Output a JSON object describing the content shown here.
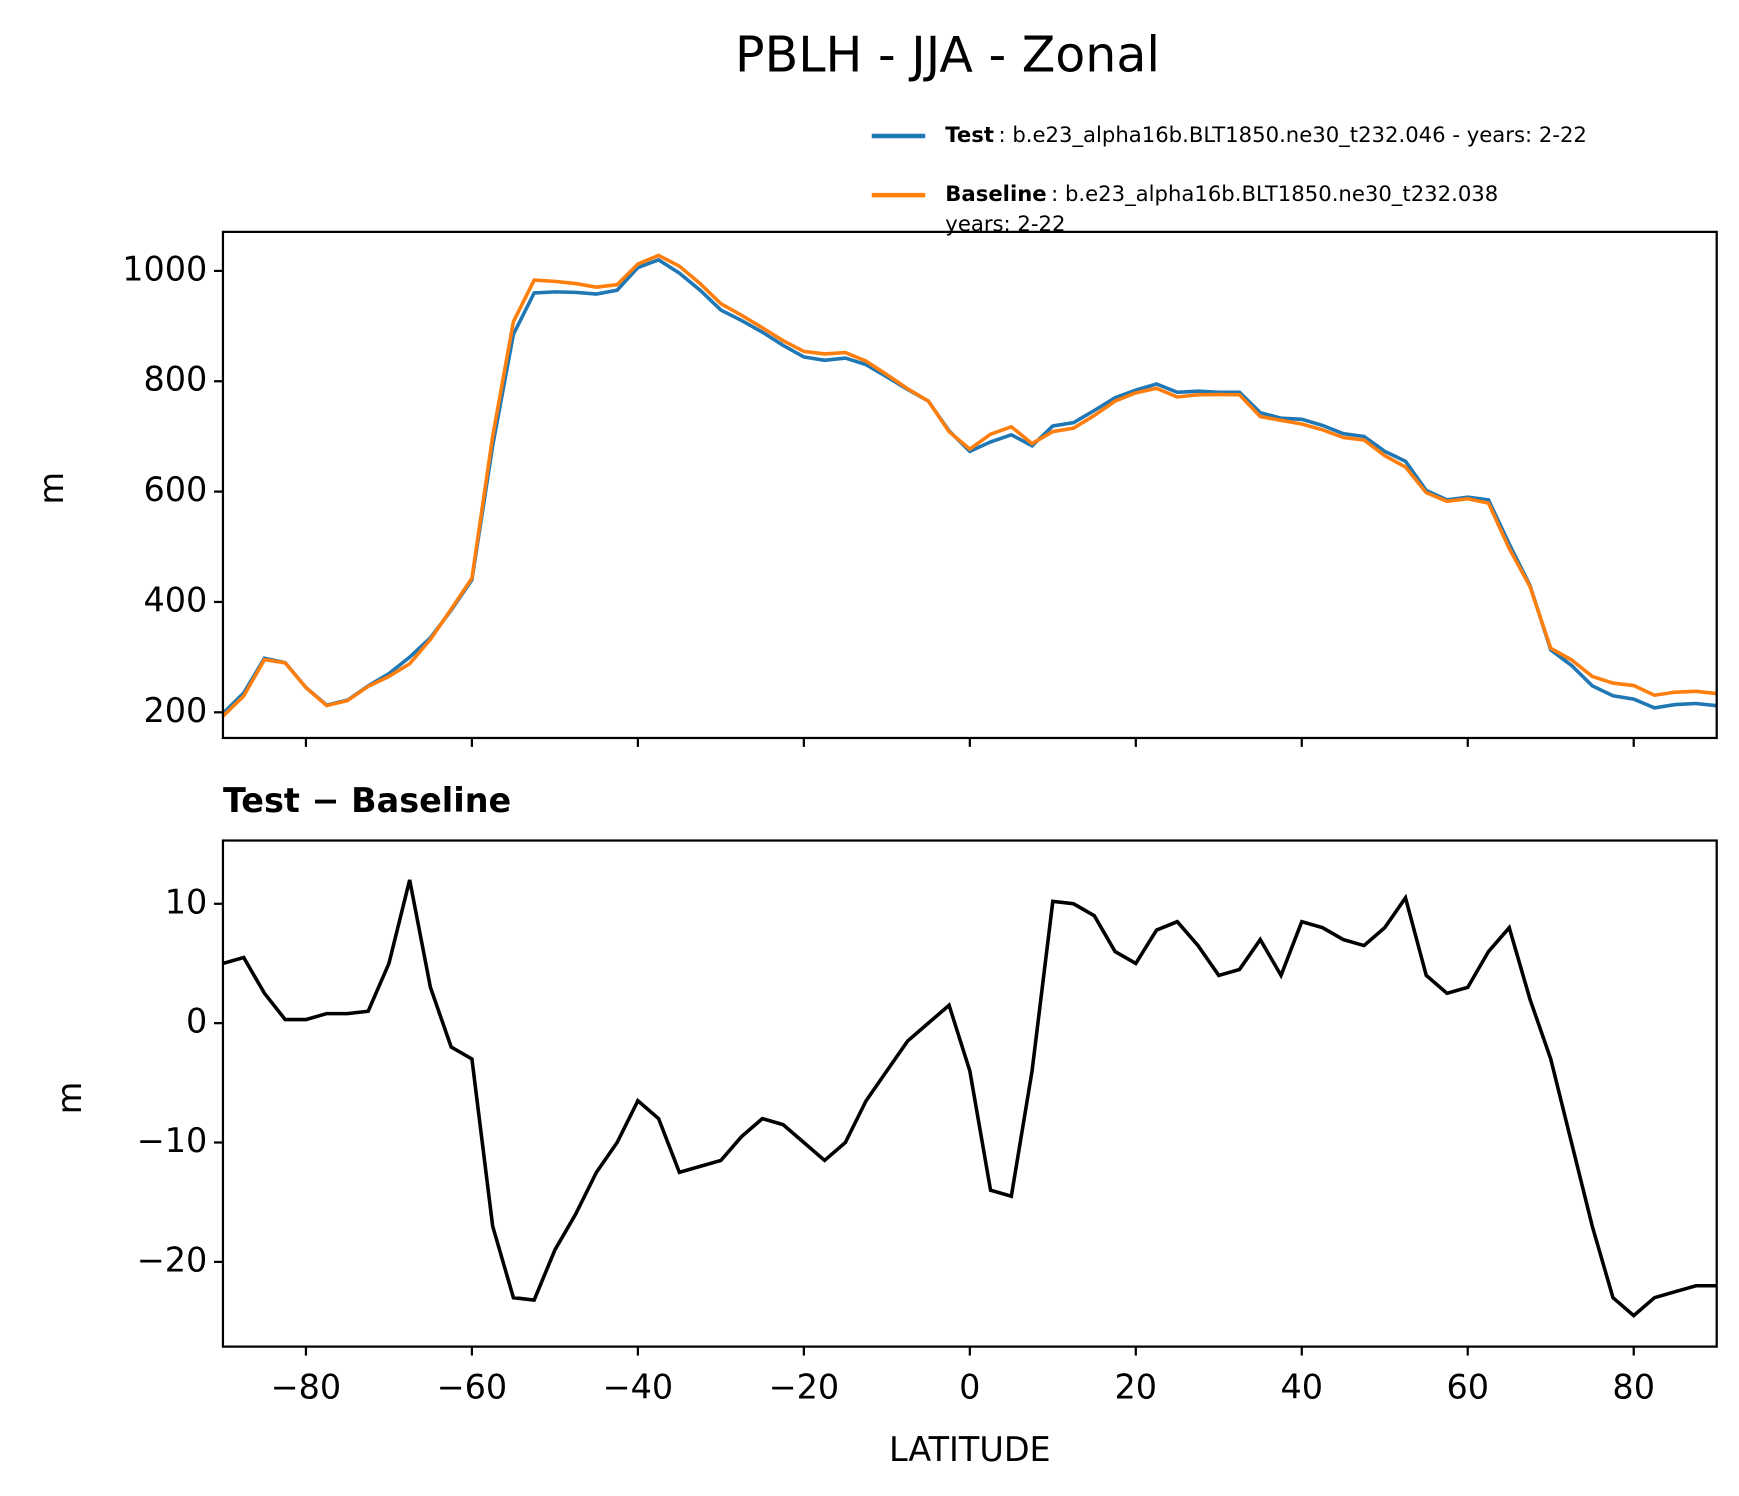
{
  "chart_data": [
    {
      "type": "line",
      "title": "PBLH - JJA - Zonal",
      "ylabel": "m",
      "x": [
        -90,
        -87.5,
        -85,
        -82.5,
        -80,
        -77.5,
        -75,
        -72.5,
        -70,
        -67.5,
        -65,
        -62.5,
        -60,
        -57.5,
        -55,
        -52.5,
        -50,
        -47.5,
        -45,
        -42.5,
        -40,
        -37.5,
        -35,
        -32.5,
        -30,
        -27.5,
        -25,
        -22.5,
        -20,
        -17.5,
        -15,
        -12.5,
        -10,
        -7.5,
        -5,
        -2.5,
        0,
        2.5,
        5,
        7.5,
        10,
        12.5,
        15,
        17.5,
        20,
        22.5,
        25,
        27.5,
        30,
        32.5,
        35,
        37.5,
        40,
        42.5,
        45,
        47.5,
        50,
        52.5,
        55,
        57.5,
        60,
        62.5,
        65,
        67.5,
        70,
        72.5,
        75,
        77.5,
        80,
        82.5,
        85,
        87.5,
        90
      ],
      "series": [
        {
          "name": "Test",
          "legend_text": [
            ": b.e23_alpha16b.BLT1850.ne30_t232.046 - years: 2-22"
          ],
          "color": "#1f77b4",
          "values": [
            198,
            235,
            298,
            290,
            245,
            213,
            222,
            248,
            270,
            300,
            335,
            385,
            440,
            683,
            885,
            960,
            962,
            961,
            958,
            965,
            1006,
            1020,
            996,
            965,
            929,
            910,
            889,
            865,
            844,
            838,
            842,
            830,
            808,
            785,
            764,
            710,
            673,
            690,
            703,
            683,
            719,
            725,
            747,
            770,
            784,
            795,
            780,
            782,
            780,
            780,
            743,
            733,
            731,
            720,
            705,
            700,
            673,
            655,
            602,
            585,
            590,
            585,
            505,
            430,
            313,
            285,
            248,
            230,
            224,
            208,
            214,
            216,
            212
          ]
        },
        {
          "name": "Baseline",
          "legend_text": [
            ": b.e23_alpha16b.BLT1850.ne30_t232.038",
            "years: 2-22"
          ],
          "color": "#ff7f0e",
          "values": [
            193,
            229.5,
            295.5,
            289.7,
            244.7,
            212.2,
            221.2,
            247,
            265,
            288,
            332,
            387,
            443,
            700,
            908,
            983.2,
            981,
            977,
            970.5,
            975,
            1012.5,
            1028,
            1008.5,
            977,
            940.5,
            919.5,
            897,
            873.5,
            854,
            849.5,
            852,
            836.5,
            812,
            786.5,
            764,
            708.5,
            677,
            704,
            717.5,
            687,
            708.8,
            715,
            738,
            764,
            779,
            787.2,
            771.5,
            775.5,
            776,
            775.5,
            736,
            729,
            722.5,
            712,
            698,
            693.5,
            665,
            644.5,
            598,
            582.5,
            587,
            579,
            497,
            428,
            316,
            295,
            265,
            253,
            248.5,
            231,
            236.5,
            238,
            234
          ]
        }
      ],
      "xlim": [
        -90,
        90
      ],
      "xticks": [
        -80,
        -60,
        -40,
        -20,
        0,
        20,
        40,
        60,
        80
      ],
      "ylim": [
        153.5,
        1070.7
      ],
      "yticks": [
        200,
        400,
        600,
        800,
        1000
      ]
    },
    {
      "type": "line",
      "title": "Test − Baseline",
      "xlabel": "LATITUDE",
      "ylabel": "m",
      "color": "#000000",
      "x": [
        -90,
        -87.5,
        -85,
        -82.5,
        -80,
        -77.5,
        -75,
        -72.5,
        -70,
        -67.5,
        -65,
        -62.5,
        -60,
        -57.5,
        -55,
        -52.5,
        -50,
        -47.5,
        -45,
        -42.5,
        -40,
        -37.5,
        -35,
        -32.5,
        -30,
        -27.5,
        -25,
        -22.5,
        -20,
        -17.5,
        -15,
        -12.5,
        -10,
        -7.5,
        -5,
        -2.5,
        0,
        2.5,
        5,
        7.5,
        10,
        12.5,
        15,
        17.5,
        20,
        22.5,
        25,
        27.5,
        30,
        32.5,
        35,
        37.5,
        40,
        42.5,
        45,
        47.5,
        50,
        52.5,
        55,
        57.5,
        60,
        62.5,
        65,
        67.5,
        70,
        72.5,
        75,
        77.5,
        80,
        82.5,
        85,
        87.5,
        90
      ],
      "values": [
        5,
        5.5,
        2.5,
        0.3,
        0.3,
        0.8,
        0.8,
        1,
        5,
        12,
        3,
        -2,
        -3,
        -17,
        -23,
        -23.2,
        -19,
        -16,
        -12.5,
        -10,
        -6.5,
        -8,
        -12.5,
        -12,
        -11.5,
        -9.5,
        -8,
        -8.5,
        -10,
        -11.5,
        -10,
        -6.5,
        -4,
        -1.5,
        0,
        1.5,
        -4,
        -14,
        -14.5,
        -4,
        10.2,
        10,
        9,
        6,
        5,
        7.8,
        8.5,
        6.5,
        4,
        4.5,
        7,
        4,
        8.5,
        8,
        7,
        6.5,
        8,
        10.5,
        4,
        2.5,
        3,
        6,
        8,
        2,
        -3,
        -10,
        -17,
        -23,
        -24.5,
        -23,
        -22.5,
        -22,
        -22
      ],
      "xlim": [
        -90,
        90
      ],
      "xticks": [
        {
          "value": -80,
          "label": "−80"
        },
        {
          "value": -60,
          "label": "−60"
        },
        {
          "value": -40,
          "label": "−40"
        },
        {
          "value": -20,
          "label": "−20"
        },
        0,
        20,
        40,
        60,
        80
      ],
      "ylim": [
        -27.1,
        15.3
      ],
      "yticks": [
        {
          "value": -20,
          "label": "−20"
        },
        {
          "value": -10,
          "label": "−10"
        },
        0,
        10
      ]
    }
  ]
}
